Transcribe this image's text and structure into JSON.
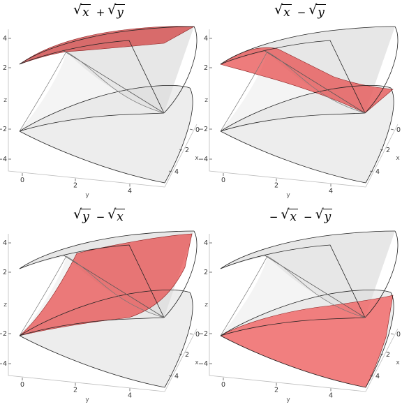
{
  "chart_data": [
    {
      "type": "surface3d",
      "panel": "top-left",
      "title_terms": [
        {
          "sign": "",
          "var": "x"
        },
        {
          "sign": "+",
          "var": "y"
        }
      ],
      "highlighted_surface": "sqrt(x)+sqrt(y)",
      "highlight_color": "#d23c3c",
      "surface_color": "#c8c8c8",
      "z_ticks": [
        "4",
        "2",
        "z",
        "−2",
        "−4"
      ],
      "y_ticks": [
        "0",
        "2",
        "4"
      ],
      "x_ticks": [
        "0",
        "2",
        "4"
      ],
      "ylabel": "y",
      "xlabel": "x",
      "zlabel": "z",
      "xlim": [
        0,
        5
      ],
      "ylim": [
        0,
        5
      ],
      "zlim": [
        -5,
        5
      ]
    },
    {
      "type": "surface3d",
      "panel": "top-right",
      "title_terms": [
        {
          "sign": "",
          "var": "x"
        },
        {
          "sign": "−",
          "var": "y"
        }
      ],
      "highlighted_surface": "sqrt(x)-sqrt(y)",
      "highlight_color": "#e84a4a",
      "surface_color": "#c8c8c8",
      "z_ticks": [
        "4",
        "2",
        "z",
        "−2",
        "−4"
      ],
      "y_ticks": [
        "0",
        "2",
        "4"
      ],
      "x_ticks": [
        "0",
        "2",
        "4"
      ],
      "ylabel": "y",
      "xlabel": "x",
      "zlabel": "z",
      "xlim": [
        0,
        5
      ],
      "ylim": [
        0,
        5
      ],
      "zlim": [
        -5,
        5
      ]
    },
    {
      "type": "surface3d",
      "panel": "bottom-left",
      "title_terms": [
        {
          "sign": "",
          "var": "y"
        },
        {
          "sign": "−",
          "var": "x"
        }
      ],
      "highlighted_surface": "sqrt(y)-sqrt(x)",
      "highlight_color": "#e84a4a",
      "surface_color": "#c8c8c8",
      "z_ticks": [
        "4",
        "2",
        "z",
        "−2",
        "−4"
      ],
      "y_ticks": [
        "0",
        "2",
        "4"
      ],
      "x_ticks": [
        "0",
        "2",
        "4"
      ],
      "ylabel": "y",
      "xlabel": "x",
      "zlabel": "z",
      "xlim": [
        0,
        5
      ],
      "ylim": [
        0,
        5
      ],
      "zlim": [
        -5,
        5
      ]
    },
    {
      "type": "surface3d",
      "panel": "bottom-right",
      "title_terms": [
        {
          "sign": "−",
          "var": "x"
        },
        {
          "sign": "−",
          "var": "y"
        }
      ],
      "highlighted_surface": "-sqrt(x)-sqrt(y)",
      "highlight_color": "#f25555",
      "surface_color": "#c8c8c8",
      "z_ticks": [
        "4",
        "2",
        "z",
        "−2",
        "−4"
      ],
      "y_ticks": [
        "0",
        "2",
        "4"
      ],
      "x_ticks": [
        "0",
        "2",
        "4"
      ],
      "ylabel": "y",
      "xlabel": "x",
      "zlabel": "z",
      "xlim": [
        0,
        5
      ],
      "ylim": [
        0,
        5
      ],
      "zlim": [
        -5,
        5
      ]
    }
  ]
}
